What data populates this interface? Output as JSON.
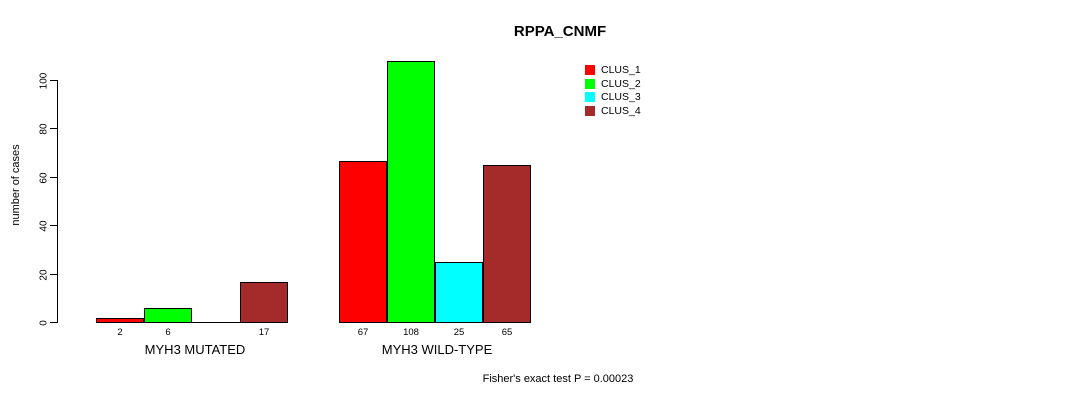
{
  "chart_data": {
    "type": "bar",
    "title": "RPPA_CNMF",
    "ylabel": "number of cases",
    "ylim": [
      0,
      100
    ],
    "yticks": [
      0,
      20,
      40,
      60,
      80,
      100
    ],
    "grid": false,
    "legend_position": "top-right",
    "series": [
      {
        "name": "CLUS_1",
        "color": "#FF0000"
      },
      {
        "name": "CLUS_2",
        "color": "#00FF00"
      },
      {
        "name": "CLUS_3",
        "color": "#00FFFF"
      },
      {
        "name": "CLUS_4",
        "color": "#A52A2A"
      }
    ],
    "groups": [
      {
        "label": "MYH3 MUTATED",
        "values": [
          2,
          6,
          0,
          17
        ],
        "bar_labels": [
          "2",
          "6",
          "",
          "17"
        ]
      },
      {
        "label": "MYH3 WILD-TYPE",
        "values": [
          67,
          108,
          25,
          65
        ],
        "bar_labels": [
          "67",
          "108",
          "25",
          "65"
        ]
      }
    ],
    "footer": "Fisher's exact test P = 0.00023"
  }
}
